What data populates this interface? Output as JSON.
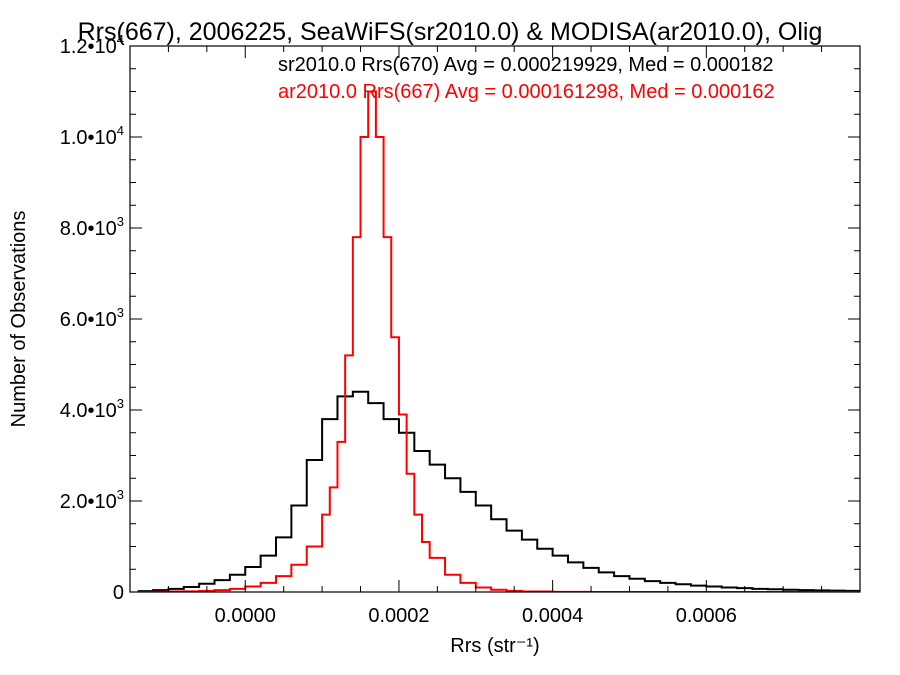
{
  "chart_data": {
    "type": "histogram",
    "title": "Rrs(667), 2006225, SeaWiFS(sr2010.0) & MODISA(ar2010.0), Olig",
    "xlabel": "Rrs (str⁻¹)",
    "ylabel": "Number of Observations",
    "xlim": [
      -0.00015,
      0.0008
    ],
    "ylim": [
      0,
      12000
    ],
    "x_ticks": [
      {
        "value": 0.0,
        "label": "0.0000"
      },
      {
        "value": 0.0002,
        "label": "0.0002"
      },
      {
        "value": 0.0004,
        "label": "0.0004"
      },
      {
        "value": 0.0006,
        "label": "0.0006"
      }
    ],
    "y_ticks": [
      {
        "value": 0,
        "base": "0",
        "exp": ""
      },
      {
        "value": 2000,
        "base": "2.0•10",
        "exp": "3"
      },
      {
        "value": 4000,
        "base": "4.0•10",
        "exp": "3"
      },
      {
        "value": 6000,
        "base": "6.0•10",
        "exp": "3"
      },
      {
        "value": 8000,
        "base": "8.0•10",
        "exp": "3"
      },
      {
        "value": 10000,
        "base": "1.0•10",
        "exp": "4"
      },
      {
        "value": 12000,
        "base": "1.2•10",
        "exp": "4"
      }
    ],
    "grid": false,
    "legend_position": "top-right",
    "series": [
      {
        "name": "sr2010.0 Rrs(670) Avg = 0.000219929, Med = 0.000182",
        "color": "#000000",
        "x": [
          -0.00014,
          -0.00012,
          -0.0001,
          -8e-05,
          -6e-05,
          -4e-05,
          -2e-05,
          0.0,
          2e-05,
          4e-05,
          6e-05,
          8e-05,
          0.0001,
          0.00012,
          0.00014,
          0.00016,
          0.00018,
          0.0002,
          0.00022,
          0.00024,
          0.00026,
          0.00028,
          0.0003,
          0.00032,
          0.00034,
          0.00036,
          0.00038,
          0.0004,
          0.00042,
          0.00044,
          0.00046,
          0.00048,
          0.0005,
          0.00052,
          0.00054,
          0.00056,
          0.00058,
          0.0006,
          0.00062,
          0.00064,
          0.00066,
          0.00068,
          0.0007,
          0.00072,
          0.00074,
          0.00076,
          0.00078,
          0.0008
        ],
        "y": [
          20,
          40,
          70,
          110,
          180,
          260,
          380,
          550,
          800,
          1200,
          1900,
          2900,
          3800,
          4300,
          4400,
          4150,
          3800,
          3500,
          3100,
          2800,
          2500,
          2200,
          1900,
          1600,
          1350,
          1150,
          950,
          800,
          650,
          530,
          430,
          350,
          290,
          240,
          200,
          170,
          140,
          120,
          100,
          85,
          70,
          60,
          50,
          40,
          35,
          30,
          25,
          20
        ]
      },
      {
        "name": "ar2010.0 Rrs(667) Avg = 0.000161298, Med = 0.000162",
        "color": "#ff0000",
        "x": [
          -0.00014,
          -0.00012,
          -0.0001,
          -8e-05,
          -6e-05,
          -4e-05,
          -2e-05,
          0.0,
          2e-05,
          4e-05,
          6e-05,
          8e-05,
          0.0001,
          0.00011,
          0.00012,
          0.00013,
          0.00014,
          0.00015,
          0.00016,
          0.00017,
          0.00018,
          0.00019,
          0.0002,
          0.00021,
          0.00022,
          0.00023,
          0.00024,
          0.00026,
          0.00028,
          0.0003,
          0.00032,
          0.00034,
          0.00036,
          0.0004,
          0.00045,
          0.0005,
          0.0006,
          0.0008
        ],
        "y": [
          0,
          5,
          10,
          15,
          25,
          40,
          70,
          120,
          200,
          350,
          600,
          1000,
          1700,
          2300,
          3300,
          5200,
          7800,
          10000,
          11000,
          10000,
          7800,
          5600,
          3900,
          2600,
          1700,
          1100,
          750,
          380,
          200,
          100,
          50,
          25,
          10,
          3,
          1,
          0,
          0,
          0
        ]
      }
    ]
  }
}
